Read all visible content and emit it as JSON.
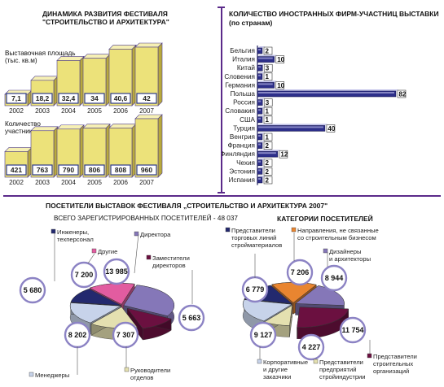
{
  "festival": {
    "title_line1": "ДИНАМИКА РАЗВИТИЯ ФЕСТИВАЛЯ",
    "title_line2": "\"СТРОИТЕЛЬСТВО И АРХИТЕКТУРА\""
  },
  "foreign": {
    "title": "КОЛИЧЕСТВО ИНОСТРАННЫХ ФИРМ-УЧАСТНИЦ ВЫСТАВКИ",
    "subtitle": "(по странам)"
  },
  "visitors": {
    "title": "ПОСЕТИТЕЛИ ВЫСТАВОК ФЕСТИВАЛЯ „СТРОИТЕЛЬСТВО И АРХИТЕКТУРА 2007\"",
    "total_label": "ВСЕГО ЗАРЕГИСТРИРОВАННЫХ ПОСЕТИТЕЛЕЙ  -  48 037",
    "categories_title": "КАТЕГОРИИ ПОСЕТИТЕЛЕЙ"
  },
  "colors": {
    "bar_face": "#ece27a",
    "bar_side": "#b8a93c",
    "bar_top": "#f6f0b4",
    "bar_outline": "#4b3a8a",
    "label_box": "#2d3a8c",
    "hbar": "#2d2f8a",
    "hbar_light": "#bfc0e8",
    "accent": "#5b2a8a"
  },
  "chart_data": [
    {
      "type": "bar",
      "title": "Выставочная площадь (тыс. кв.м)",
      "categories": [
        "2002",
        "2003",
        "2004",
        "2005",
        "2006",
        "2007"
      ],
      "values": [
        7.1,
        18.2,
        32.4,
        34,
        40.6,
        42
      ],
      "value_labels": [
        "7,1",
        "18,2",
        "32,4",
        "34",
        "40,6",
        "42"
      ],
      "ylim": [
        0,
        42
      ]
    },
    {
      "type": "bar",
      "title": "Количество участников",
      "categories": [
        "2002",
        "2003",
        "2004",
        "2005",
        "2006",
        "2007"
      ],
      "values": [
        421,
        763,
        790,
        806,
        808,
        960
      ],
      "value_labels": [
        "421",
        "763",
        "790",
        "806",
        "808",
        "960"
      ],
      "ylim": [
        0,
        960
      ]
    },
    {
      "type": "bar",
      "orientation": "horizontal",
      "title": "КОЛИЧЕСТВО ИНОСТРАННЫХ ФИРМ-УЧАСТНИЦ ВЫСТАВКИ",
      "categories": [
        "Бельгия",
        "Италия",
        "Китай",
        "Словения",
        "Германия",
        "Польша",
        "Россия",
        "Словакия",
        "США",
        "Турция",
        "Венгрия",
        "Франция",
        "Финляндия",
        "Чехия",
        "Эстония",
        "Испания"
      ],
      "values": [
        2,
        10,
        3,
        1,
        10,
        82,
        3,
        1,
        1,
        40,
        1,
        2,
        12,
        2,
        2,
        2
      ]
    },
    {
      "type": "pie",
      "title": "ПОСЕТИТЕЛИ ВЫСТАВОК ФЕСТИВАЛЯ „СТРОИТЕЛЬСТВО И АРХИТЕКТУРА 2007\"",
      "labels": [
        "Директора",
        "Заместители директоров",
        "Руководители отделов",
        "Менеджеры",
        "Инженеры, техперсонал",
        "Другие"
      ],
      "values": [
        13985,
        5663,
        7307,
        8202,
        5680,
        7200
      ],
      "value_labels": [
        "13 985",
        "5 663",
        "7 307",
        "8 202",
        "5 680",
        "7 200"
      ],
      "colors": [
        "#8577b8",
        "#6b1040",
        "#e4e0b0",
        "#c7d3ea",
        "#23296e",
        "#e25ca0"
      ]
    },
    {
      "type": "pie",
      "title": "КАТЕГОРИИ ПОСЕТИТЕЛЕЙ",
      "labels": [
        "Дизайнеры и архитекторы",
        "Представители строительных организаций",
        "Представители предприятий стройиндустрии",
        "Корпоративные и другие заказчики",
        "Представители торговых линий стройматериалов",
        "Направления, не связанные со строительным бизнесом"
      ],
      "values": [
        8944,
        11754,
        4227,
        9127,
        6779,
        7206
      ],
      "value_labels": [
        "8 944",
        "11 754",
        "4 227",
        "9 127",
        "6 779",
        "7 206"
      ],
      "colors": [
        "#8577b8",
        "#6b1040",
        "#e4e0b0",
        "#c7d3ea",
        "#23296e",
        "#e98530"
      ]
    }
  ]
}
